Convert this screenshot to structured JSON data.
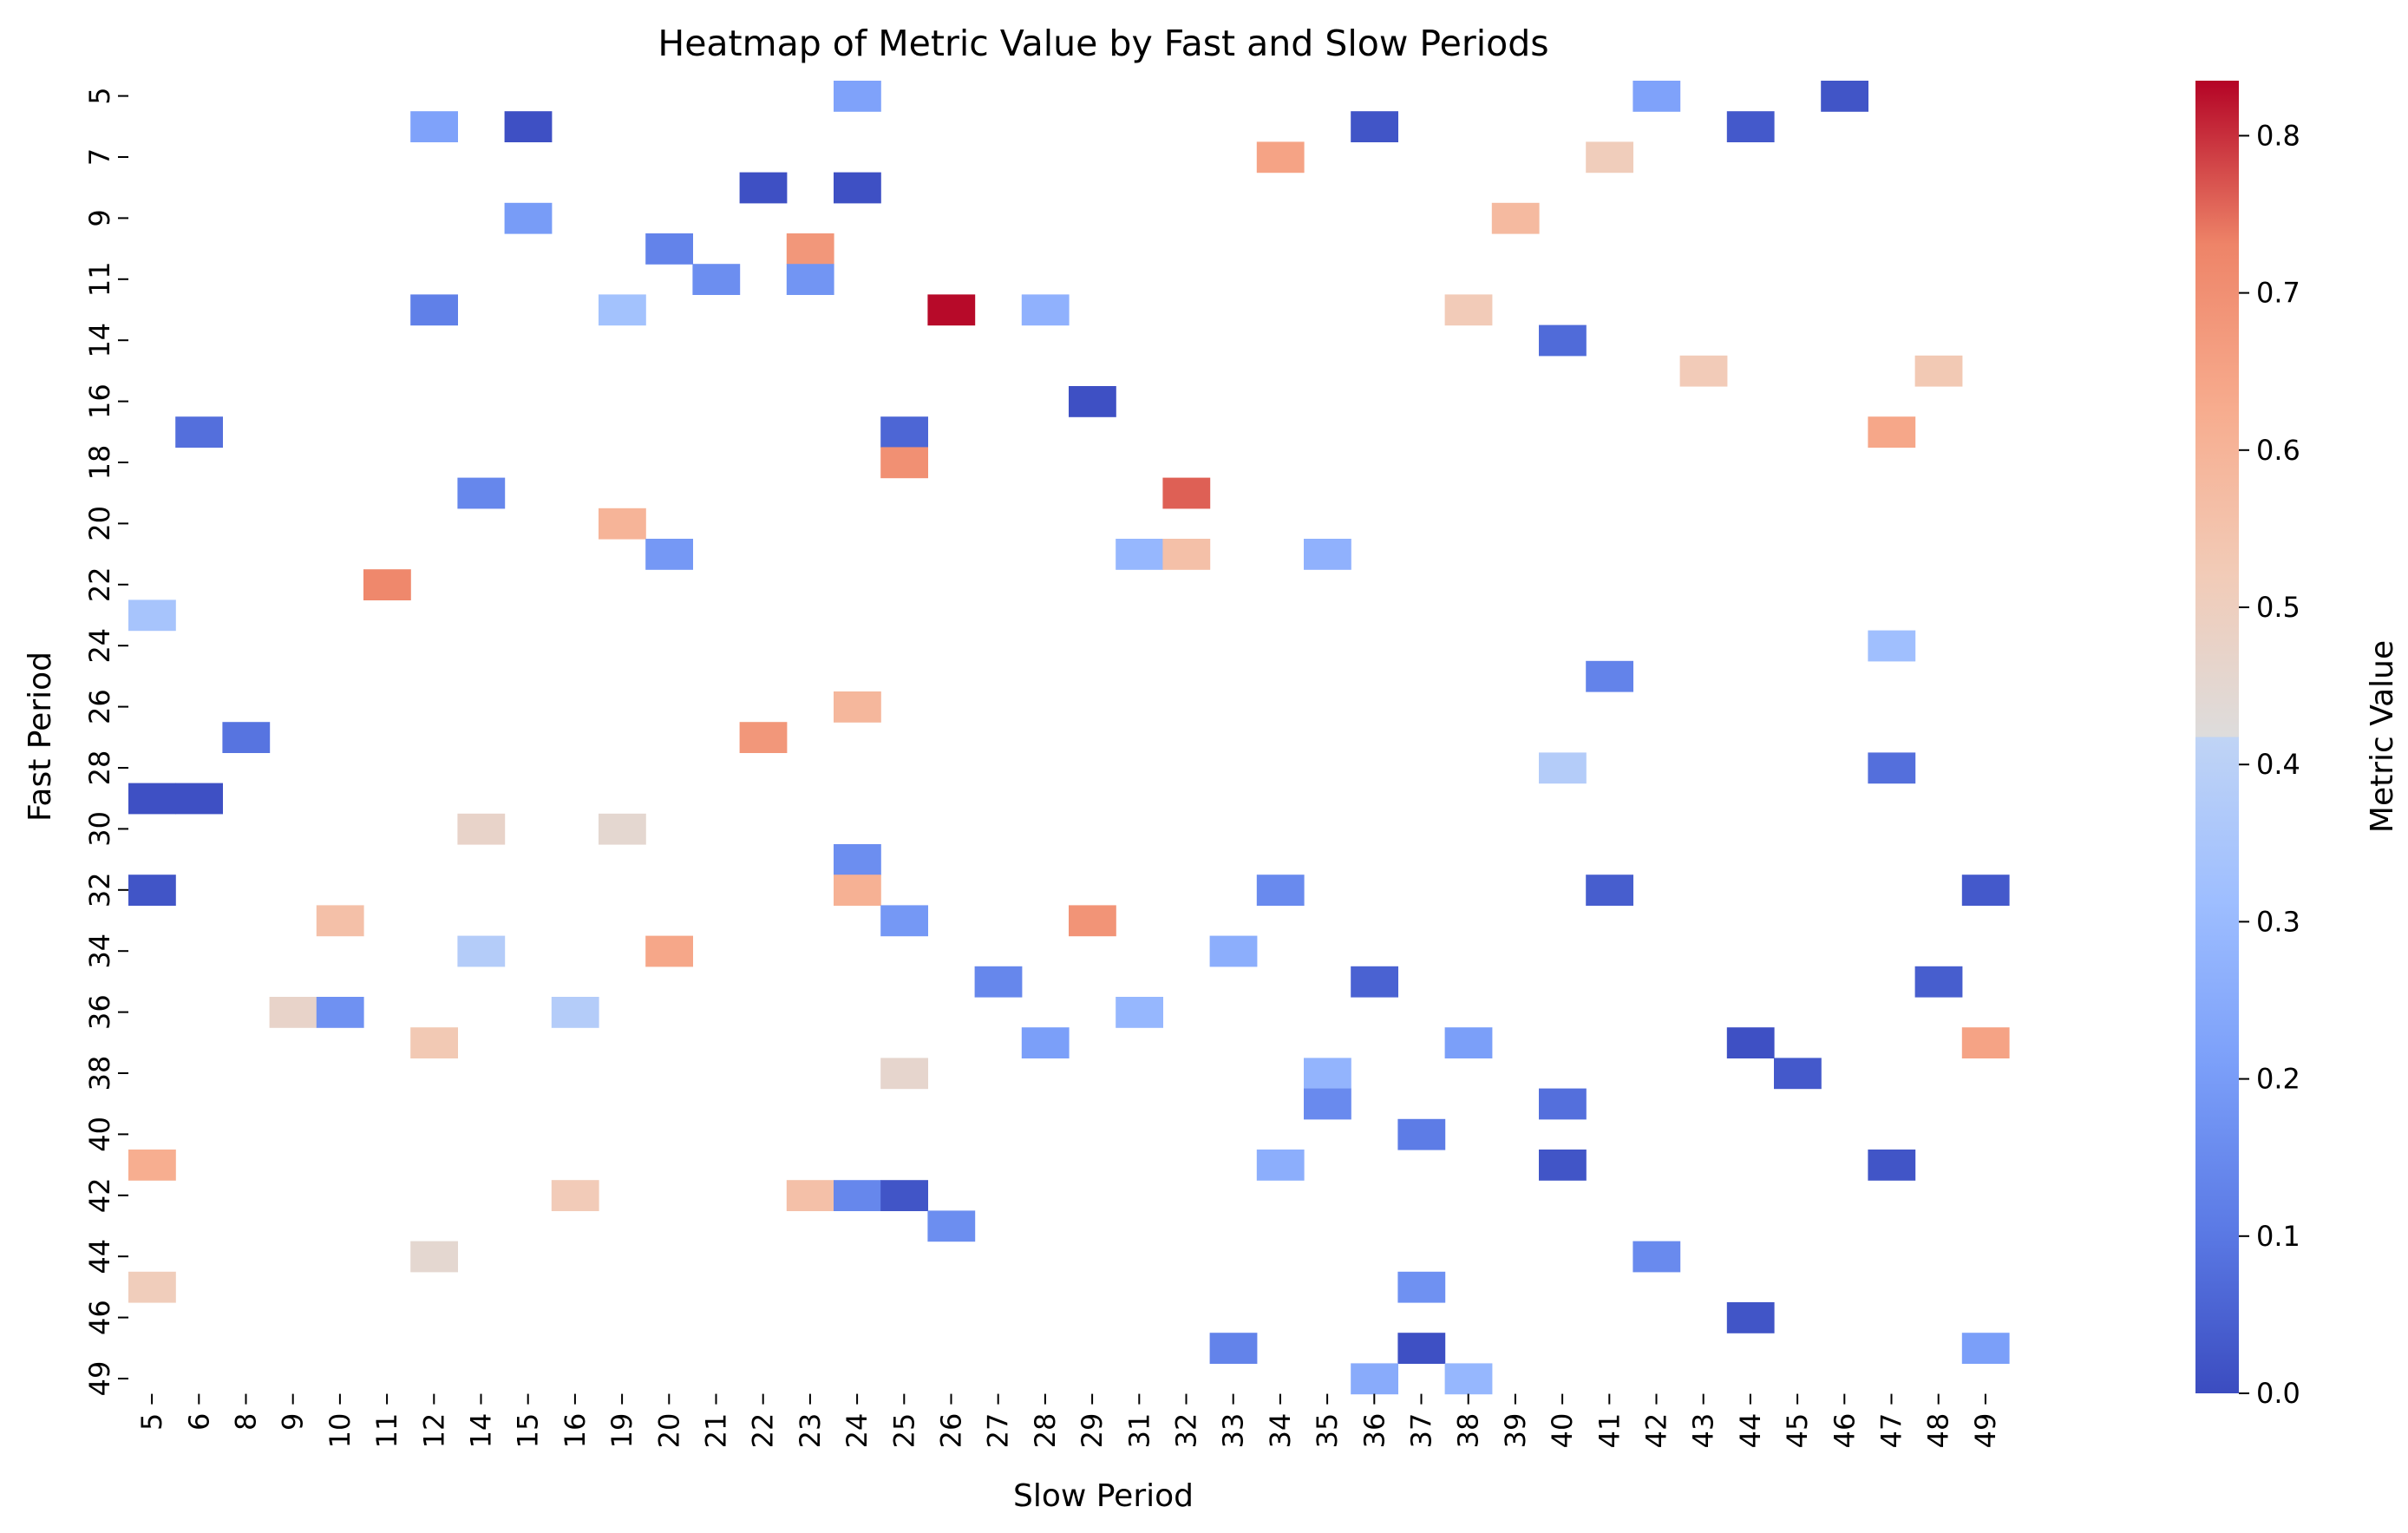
{
  "chart_data": {
    "type": "heatmap",
    "title": "Heatmap of Metric Value by Fast and Slow Periods",
    "xlabel": "Slow Period",
    "ylabel": "Fast Period",
    "colorbar_label": "Metric Value",
    "colormap": "coolwarm",
    "colorbar_ticks": [
      "0.0",
      "0.1",
      "0.2",
      "0.3",
      "0.4",
      "0.5",
      "0.6",
      "0.7",
      "0.8"
    ],
    "vmin": 0.0,
    "vmax": 0.835,
    "x_categories": [
      "5",
      "6",
      "8",
      "9",
      "10",
      "11",
      "12",
      "14",
      "15",
      "16",
      "19",
      "20",
      "21",
      "22",
      "23",
      "24",
      "25",
      "26",
      "27",
      "28",
      "29",
      "31",
      "32",
      "33",
      "34",
      "35",
      "36",
      "37",
      "38",
      "39",
      "40",
      "41",
      "42",
      "43",
      "44",
      "45",
      "46",
      "47",
      "48",
      "49"
    ],
    "y_categories": [
      "5",
      "6",
      "7",
      "8",
      "9",
      "10",
      "11",
      "13",
      "14",
      "15",
      "16",
      "17",
      "18",
      "19",
      "20",
      "21",
      "22",
      "23",
      "24",
      "25",
      "26",
      "27",
      "28",
      "29",
      "30",
      "31",
      "32",
      "33",
      "34",
      "35",
      "36",
      "37",
      "38",
      "39",
      "40",
      "41",
      "42",
      "43",
      "44",
      "45",
      "46",
      "47",
      "49"
    ],
    "y_tick_labels": [
      "5",
      "7",
      "9",
      "11",
      "14",
      "16",
      "18",
      "20",
      "22",
      "24",
      "26",
      "28",
      "30",
      "32",
      "34",
      "36",
      "38",
      "40",
      "42",
      "44",
      "46",
      "49"
    ],
    "cells": [
      {
        "fast": "5",
        "slow": "24",
        "value": 0.22
      },
      {
        "fast": "5",
        "slow": "42",
        "value": 0.22
      },
      {
        "fast": "5",
        "slow": "46",
        "value": 0.02
      },
      {
        "fast": "6",
        "slow": "12",
        "value": 0.22
      },
      {
        "fast": "6",
        "slow": "15",
        "value": 0.01
      },
      {
        "fast": "6",
        "slow": "36",
        "value": 0.02
      },
      {
        "fast": "6",
        "slow": "44",
        "value": 0.03
      },
      {
        "fast": "7",
        "slow": "34",
        "value": 0.65
      },
      {
        "fast": "7",
        "slow": "41",
        "value": 0.51
      },
      {
        "fast": "8",
        "slow": "22",
        "value": 0.01
      },
      {
        "fast": "8",
        "slow": "24",
        "value": 0.01
      },
      {
        "fast": "9",
        "slow": "15",
        "value": 0.2
      },
      {
        "fast": "9",
        "slow": "39",
        "value": 0.58
      },
      {
        "fast": "10",
        "slow": "20",
        "value": 0.13
      },
      {
        "fast": "10",
        "slow": "23",
        "value": 0.68
      },
      {
        "fast": "11",
        "slow": "21",
        "value": 0.16
      },
      {
        "fast": "11",
        "slow": "23",
        "value": 0.18
      },
      {
        "fast": "13",
        "slow": "12",
        "value": 0.12
      },
      {
        "fast": "13",
        "slow": "19",
        "value": 0.33
      },
      {
        "fast": "13",
        "slow": "26",
        "value": 0.83
      },
      {
        "fast": "13",
        "slow": "28",
        "value": 0.27
      },
      {
        "fast": "13",
        "slow": "38",
        "value": 0.52
      },
      {
        "fast": "14",
        "slow": "40",
        "value": 0.07
      },
      {
        "fast": "15",
        "slow": "43",
        "value": 0.52
      },
      {
        "fast": "15",
        "slow": "48",
        "value": 0.53
      },
      {
        "fast": "16",
        "slow": "29",
        "value": 0.01
      },
      {
        "fast": "17",
        "slow": "6",
        "value": 0.08
      },
      {
        "fast": "17",
        "slow": "25",
        "value": 0.06
      },
      {
        "fast": "17",
        "slow": "47",
        "value": 0.64
      },
      {
        "fast": "18",
        "slow": "25",
        "value": 0.7
      },
      {
        "fast": "19",
        "slow": "14",
        "value": 0.14
      },
      {
        "fast": "19",
        "slow": "32",
        "value": 0.76
      },
      {
        "fast": "20",
        "slow": "19",
        "value": 0.6
      },
      {
        "fast": "21",
        "slow": "20",
        "value": 0.19
      },
      {
        "fast": "21",
        "slow": "31",
        "value": 0.29
      },
      {
        "fast": "21",
        "slow": "32",
        "value": 0.56
      },
      {
        "fast": "21",
        "slow": "35",
        "value": 0.27
      },
      {
        "fast": "22",
        "slow": "11",
        "value": 0.72
      },
      {
        "fast": "23",
        "slow": "5",
        "value": 0.34
      },
      {
        "fast": "24",
        "slow": "47",
        "value": 0.32
      },
      {
        "fast": "25",
        "slow": "41",
        "value": 0.13
      },
      {
        "fast": "26",
        "slow": "24",
        "value": 0.59
      },
      {
        "fast": "27",
        "slow": "8",
        "value": 0.09
      },
      {
        "fast": "27",
        "slow": "22",
        "value": 0.68
      },
      {
        "fast": "28",
        "slow": "40",
        "value": 0.38
      },
      {
        "fast": "28",
        "slow": "47",
        "value": 0.08
      },
      {
        "fast": "29",
        "slow": "5",
        "value": 0.01
      },
      {
        "fast": "29",
        "slow": "6",
        "value": 0.01
      },
      {
        "fast": "30",
        "slow": "14",
        "value": 0.47
      },
      {
        "fast": "30",
        "slow": "19",
        "value": 0.45
      },
      {
        "fast": "31",
        "slow": "24",
        "value": 0.16
      },
      {
        "fast": "32",
        "slow": "5",
        "value": 0.02
      },
      {
        "fast": "32",
        "slow": "24",
        "value": 0.61
      },
      {
        "fast": "32",
        "slow": "34",
        "value": 0.15
      },
      {
        "fast": "32",
        "slow": "41",
        "value": 0.04
      },
      {
        "fast": "32",
        "slow": "49",
        "value": 0.03
      },
      {
        "fast": "33",
        "slow": "10",
        "value": 0.56
      },
      {
        "fast": "33",
        "slow": "25",
        "value": 0.19
      },
      {
        "fast": "33",
        "slow": "29",
        "value": 0.69
      },
      {
        "fast": "34",
        "slow": "14",
        "value": 0.38
      },
      {
        "fast": "34",
        "slow": "20",
        "value": 0.64
      },
      {
        "fast": "34",
        "slow": "33",
        "value": 0.26
      },
      {
        "fast": "35",
        "slow": "27",
        "value": 0.14
      },
      {
        "fast": "35",
        "slow": "36",
        "value": 0.05
      },
      {
        "fast": "35",
        "slow": "48",
        "value": 0.04
      },
      {
        "fast": "36",
        "slow": "9",
        "value": 0.47
      },
      {
        "fast": "36",
        "slow": "10",
        "value": 0.17
      },
      {
        "fast": "36",
        "slow": "16",
        "value": 0.38
      },
      {
        "fast": "36",
        "slow": "31",
        "value": 0.29
      },
      {
        "fast": "37",
        "slow": "12",
        "value": 0.53
      },
      {
        "fast": "37",
        "slow": "28",
        "value": 0.21
      },
      {
        "fast": "37",
        "slow": "38",
        "value": 0.21
      },
      {
        "fast": "37",
        "slow": "44",
        "value": 0.01
      },
      {
        "fast": "37",
        "slow": "49",
        "value": 0.65
      },
      {
        "fast": "38",
        "slow": "25",
        "value": 0.46
      },
      {
        "fast": "38",
        "slow": "35",
        "value": 0.28
      },
      {
        "fast": "38",
        "slow": "45",
        "value": 0.03
      },
      {
        "fast": "39",
        "slow": "35",
        "value": 0.15
      },
      {
        "fast": "39",
        "slow": "40",
        "value": 0.08
      },
      {
        "fast": "40",
        "slow": "37",
        "value": 0.11
      },
      {
        "fast": "41",
        "slow": "5",
        "value": 0.62
      },
      {
        "fast": "41",
        "slow": "34",
        "value": 0.26
      },
      {
        "fast": "41",
        "slow": "40",
        "value": 0.02
      },
      {
        "fast": "41",
        "slow": "47",
        "value": 0.02
      },
      {
        "fast": "42",
        "slow": "16",
        "value": 0.52
      },
      {
        "fast": "42",
        "slow": "23",
        "value": 0.56
      },
      {
        "fast": "42",
        "slow": "24",
        "value": 0.14
      },
      {
        "fast": "42",
        "slow": "25",
        "value": 0.02
      },
      {
        "fast": "43",
        "slow": "26",
        "value": 0.16
      },
      {
        "fast": "44",
        "slow": "12",
        "value": 0.45
      },
      {
        "fast": "44",
        "slow": "42",
        "value": 0.15
      },
      {
        "fast": "45",
        "slow": "5",
        "value": 0.51
      },
      {
        "fast": "45",
        "slow": "37",
        "value": 0.17
      },
      {
        "fast": "46",
        "slow": "44",
        "value": 0.02
      },
      {
        "fast": "47",
        "slow": "33",
        "value": 0.13
      },
      {
        "fast": "47",
        "slow": "37",
        "value": 0.01
      },
      {
        "fast": "47",
        "slow": "49",
        "value": 0.21
      },
      {
        "fast": "49",
        "slow": "36",
        "value": 0.25
      },
      {
        "fast": "49",
        "slow": "38",
        "value": 0.29
      }
    ]
  }
}
